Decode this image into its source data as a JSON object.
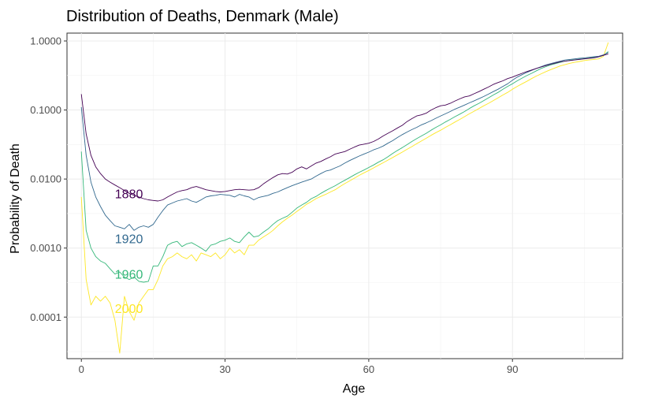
{
  "chart_data": {
    "type": "line",
    "title": "Distribution of Deaths, Denmark (Male)",
    "xlabel": "Age",
    "ylabel": "Probability of Death",
    "x_scale": "linear",
    "y_scale": "log10",
    "xlim": [
      -3,
      113
    ],
    "ylim": [
      2.5e-05,
      1.3
    ],
    "x_ticks": [
      0,
      30,
      60,
      90
    ],
    "x_tick_labels": [
      "0",
      "30",
      "60",
      "90"
    ],
    "y_ticks": [
      0.0001,
      0.001,
      0.01,
      0.1,
      1
    ],
    "y_tick_labels": [
      "0.0001",
      "0.0010",
      "0.0100",
      "0.1000",
      "1.0000"
    ],
    "grid": true,
    "legend": "none",
    "series": [
      {
        "name": "1880",
        "color": "#440154",
        "label_x": 7,
        "label_y": 0.0062,
        "x": [
          0,
          1,
          2,
          3,
          4,
          5,
          6,
          7,
          8,
          9,
          10,
          11,
          12,
          13,
          14,
          15,
          16,
          17,
          18,
          19,
          20,
          21,
          22,
          23,
          24,
          25,
          26,
          27,
          28,
          29,
          30,
          31,
          32,
          33,
          34,
          35,
          36,
          37,
          38,
          39,
          40,
          41,
          42,
          43,
          44,
          45,
          46,
          47,
          48,
          49,
          50,
          51,
          52,
          53,
          54,
          55,
          56,
          57,
          58,
          59,
          60,
          61,
          62,
          63,
          64,
          65,
          66,
          67,
          68,
          69,
          70,
          71,
          72,
          73,
          74,
          75,
          76,
          77,
          78,
          79,
          80,
          81,
          82,
          83,
          84,
          85,
          86,
          87,
          88,
          89,
          90,
          91,
          92,
          93,
          94,
          95,
          96,
          97,
          98,
          99,
          100,
          101,
          102,
          103,
          104,
          105,
          106,
          107,
          108,
          109,
          110
        ],
        "y": [
          0.17,
          0.045,
          0.022,
          0.015,
          0.012,
          0.01,
          0.009,
          0.0082,
          0.0075,
          0.0068,
          0.0062,
          0.0058,
          0.0055,
          0.0052,
          0.005,
          0.0049,
          0.0048,
          0.005,
          0.0055,
          0.006,
          0.0065,
          0.0068,
          0.007,
          0.0075,
          0.0078,
          0.0074,
          0.007,
          0.0068,
          0.0066,
          0.0065,
          0.0066,
          0.0068,
          0.007,
          0.0071,
          0.007,
          0.0069,
          0.007,
          0.0075,
          0.0085,
          0.0095,
          0.0105,
          0.0115,
          0.012,
          0.0118,
          0.0125,
          0.014,
          0.015,
          0.014,
          0.0155,
          0.017,
          0.018,
          0.0195,
          0.021,
          0.023,
          0.024,
          0.025,
          0.027,
          0.029,
          0.031,
          0.032,
          0.033,
          0.035,
          0.038,
          0.042,
          0.046,
          0.05,
          0.055,
          0.06,
          0.068,
          0.075,
          0.082,
          0.085,
          0.09,
          0.1,
          0.108,
          0.115,
          0.118,
          0.125,
          0.135,
          0.145,
          0.155,
          0.16,
          0.172,
          0.185,
          0.2,
          0.215,
          0.235,
          0.25,
          0.265,
          0.285,
          0.3,
          0.32,
          0.34,
          0.36,
          0.38,
          0.4,
          0.42,
          0.44,
          0.46,
          0.48,
          0.5,
          0.51,
          0.52,
          0.53,
          0.54,
          0.55,
          0.56,
          0.57,
          0.59,
          0.62,
          0.65
        ]
      },
      {
        "name": "1920",
        "color": "#31688E",
        "label_x": 7,
        "label_y": 0.00138,
        "x": [
          0,
          1,
          2,
          3,
          4,
          5,
          6,
          7,
          8,
          9,
          10,
          11,
          12,
          13,
          14,
          15,
          16,
          17,
          18,
          19,
          20,
          21,
          22,
          23,
          24,
          25,
          26,
          27,
          28,
          29,
          30,
          31,
          32,
          33,
          34,
          35,
          36,
          37,
          38,
          39,
          40,
          41,
          42,
          43,
          44,
          45,
          46,
          47,
          48,
          49,
          50,
          51,
          52,
          53,
          54,
          55,
          56,
          57,
          58,
          59,
          60,
          61,
          62,
          63,
          64,
          65,
          66,
          67,
          68,
          69,
          70,
          71,
          72,
          73,
          74,
          75,
          76,
          77,
          78,
          79,
          80,
          81,
          82,
          83,
          84,
          85,
          86,
          87,
          88,
          89,
          90,
          91,
          92,
          93,
          94,
          95,
          96,
          97,
          98,
          99,
          100,
          101,
          102,
          103,
          104,
          105,
          106,
          107,
          108,
          109,
          110
        ],
        "y": [
          0.11,
          0.022,
          0.009,
          0.0055,
          0.004,
          0.003,
          0.0025,
          0.0021,
          0.002,
          0.0019,
          0.0022,
          0.0018,
          0.002,
          0.0021,
          0.002,
          0.0022,
          0.0028,
          0.0035,
          0.0042,
          0.0045,
          0.0048,
          0.005,
          0.0052,
          0.0048,
          0.0046,
          0.005,
          0.0055,
          0.0057,
          0.0058,
          0.006,
          0.0059,
          0.0058,
          0.0055,
          0.006,
          0.0057,
          0.0055,
          0.005,
          0.0054,
          0.0056,
          0.0058,
          0.0062,
          0.0065,
          0.007,
          0.0075,
          0.008,
          0.0085,
          0.009,
          0.0095,
          0.01,
          0.011,
          0.012,
          0.013,
          0.0135,
          0.0145,
          0.0155,
          0.017,
          0.0185,
          0.02,
          0.0215,
          0.023,
          0.0245,
          0.0265,
          0.028,
          0.03,
          0.033,
          0.036,
          0.04,
          0.044,
          0.048,
          0.052,
          0.056,
          0.061,
          0.065,
          0.07,
          0.076,
          0.082,
          0.088,
          0.095,
          0.103,
          0.11,
          0.118,
          0.127,
          0.136,
          0.146,
          0.157,
          0.17,
          0.185,
          0.2,
          0.22,
          0.24,
          0.27,
          0.3,
          0.325,
          0.35,
          0.375,
          0.4,
          0.425,
          0.45,
          0.47,
          0.49,
          0.51,
          0.53,
          0.54,
          0.55,
          0.56,
          0.57,
          0.58,
          0.59,
          0.6,
          0.63,
          0.68
        ]
      },
      {
        "name": "1960",
        "color": "#35B779",
        "label_x": 7,
        "label_y": 0.00042,
        "x": [
          0,
          1,
          2,
          3,
          4,
          5,
          6,
          7,
          8,
          9,
          10,
          11,
          12,
          13,
          14,
          15,
          16,
          17,
          18,
          19,
          20,
          21,
          22,
          23,
          24,
          25,
          26,
          27,
          28,
          29,
          30,
          31,
          32,
          33,
          34,
          35,
          36,
          37,
          38,
          39,
          40,
          41,
          42,
          43,
          44,
          45,
          46,
          47,
          48,
          49,
          50,
          51,
          52,
          53,
          54,
          55,
          56,
          57,
          58,
          59,
          60,
          61,
          62,
          63,
          64,
          65,
          66,
          67,
          68,
          69,
          70,
          71,
          72,
          73,
          74,
          75,
          76,
          77,
          78,
          79,
          80,
          81,
          82,
          83,
          84,
          85,
          86,
          87,
          88,
          89,
          90,
          91,
          92,
          93,
          94,
          95,
          96,
          97,
          98,
          99,
          100,
          101,
          102,
          103,
          104,
          105,
          106,
          107,
          108,
          109,
          110
        ],
        "y": [
          0.025,
          0.0018,
          0.001,
          0.00075,
          0.00065,
          0.0006,
          0.0005,
          0.00042,
          0.00045,
          0.00038,
          0.00035,
          0.00038,
          0.00033,
          0.00032,
          0.00033,
          0.00055,
          0.00055,
          0.00075,
          0.0011,
          0.0012,
          0.00125,
          0.00105,
          0.00115,
          0.0012,
          0.0011,
          0.001,
          0.0009,
          0.0011,
          0.00115,
          0.00125,
          0.0013,
          0.0014,
          0.00125,
          0.0012,
          0.00145,
          0.0017,
          0.00145,
          0.0015,
          0.0017,
          0.0019,
          0.0022,
          0.0025,
          0.0027,
          0.0029,
          0.0033,
          0.0038,
          0.0042,
          0.0046,
          0.0052,
          0.0056,
          0.0062,
          0.0068,
          0.0074,
          0.008,
          0.0088,
          0.0096,
          0.0105,
          0.0115,
          0.0125,
          0.0135,
          0.0147,
          0.016,
          0.0175,
          0.019,
          0.021,
          0.0235,
          0.026,
          0.0285,
          0.0315,
          0.035,
          0.0385,
          0.042,
          0.046,
          0.051,
          0.056,
          0.061,
          0.067,
          0.073,
          0.08,
          0.087,
          0.095,
          0.105,
          0.115,
          0.125,
          0.137,
          0.15,
          0.165,
          0.18,
          0.2,
          0.22,
          0.24,
          0.265,
          0.29,
          0.315,
          0.34,
          0.37,
          0.4,
          0.425,
          0.45,
          0.47,
          0.49,
          0.51,
          0.525,
          0.535,
          0.545,
          0.555,
          0.565,
          0.575,
          0.59,
          0.62,
          0.7
        ]
      },
      {
        "name": "2000",
        "color": "#FDE725",
        "label_x": 7,
        "label_y": 0.000135,
        "x": [
          0,
          1,
          2,
          3,
          4,
          5,
          6,
          7,
          8,
          9,
          10,
          11,
          12,
          13,
          14,
          15,
          16,
          17,
          18,
          19,
          20,
          21,
          22,
          23,
          24,
          25,
          26,
          27,
          28,
          29,
          30,
          31,
          32,
          33,
          34,
          35,
          36,
          37,
          38,
          39,
          40,
          41,
          42,
          43,
          44,
          45,
          46,
          47,
          48,
          49,
          50,
          51,
          52,
          53,
          54,
          55,
          56,
          57,
          58,
          59,
          60,
          61,
          62,
          63,
          64,
          65,
          66,
          67,
          68,
          69,
          70,
          71,
          72,
          73,
          74,
          75,
          76,
          77,
          78,
          79,
          80,
          81,
          82,
          83,
          84,
          85,
          86,
          87,
          88,
          89,
          90,
          91,
          92,
          93,
          94,
          95,
          96,
          97,
          98,
          99,
          100,
          101,
          102,
          103,
          104,
          105,
          106,
          107,
          108,
          109,
          110
        ],
        "y": [
          0.0055,
          0.00035,
          0.00015,
          0.0002,
          0.00017,
          0.0002,
          0.00016,
          9e-05,
          3e-05,
          0.0002,
          0.00012,
          9e-05,
          0.00016,
          0.0002,
          0.00025,
          0.00025,
          0.00035,
          0.00055,
          0.0007,
          0.00075,
          0.00085,
          0.00075,
          0.0007,
          0.0008,
          0.00065,
          0.00085,
          0.0008,
          0.00075,
          0.00085,
          0.0007,
          0.0008,
          0.001,
          0.00085,
          0.00095,
          0.0008,
          0.0011,
          0.0011,
          0.0013,
          0.00145,
          0.0016,
          0.0018,
          0.0021,
          0.0024,
          0.0027,
          0.003,
          0.0034,
          0.0038,
          0.0043,
          0.0047,
          0.0052,
          0.0056,
          0.006,
          0.0065,
          0.007,
          0.0078,
          0.0086,
          0.0094,
          0.0103,
          0.0113,
          0.0123,
          0.0133,
          0.0145,
          0.0158,
          0.0172,
          0.0188,
          0.0205,
          0.0225,
          0.0245,
          0.027,
          0.0295,
          0.0325,
          0.0355,
          0.039,
          0.043,
          0.047,
          0.051,
          0.056,
          0.061,
          0.067,
          0.073,
          0.08,
          0.088,
          0.096,
          0.105,
          0.115,
          0.125,
          0.137,
          0.15,
          0.165,
          0.18,
          0.2,
          0.22,
          0.24,
          0.26,
          0.285,
          0.31,
          0.335,
          0.36,
          0.385,
          0.41,
          0.435,
          0.455,
          0.475,
          0.49,
          0.505,
          0.52,
          0.53,
          0.54,
          0.55,
          0.6,
          0.95
        ]
      }
    ]
  }
}
